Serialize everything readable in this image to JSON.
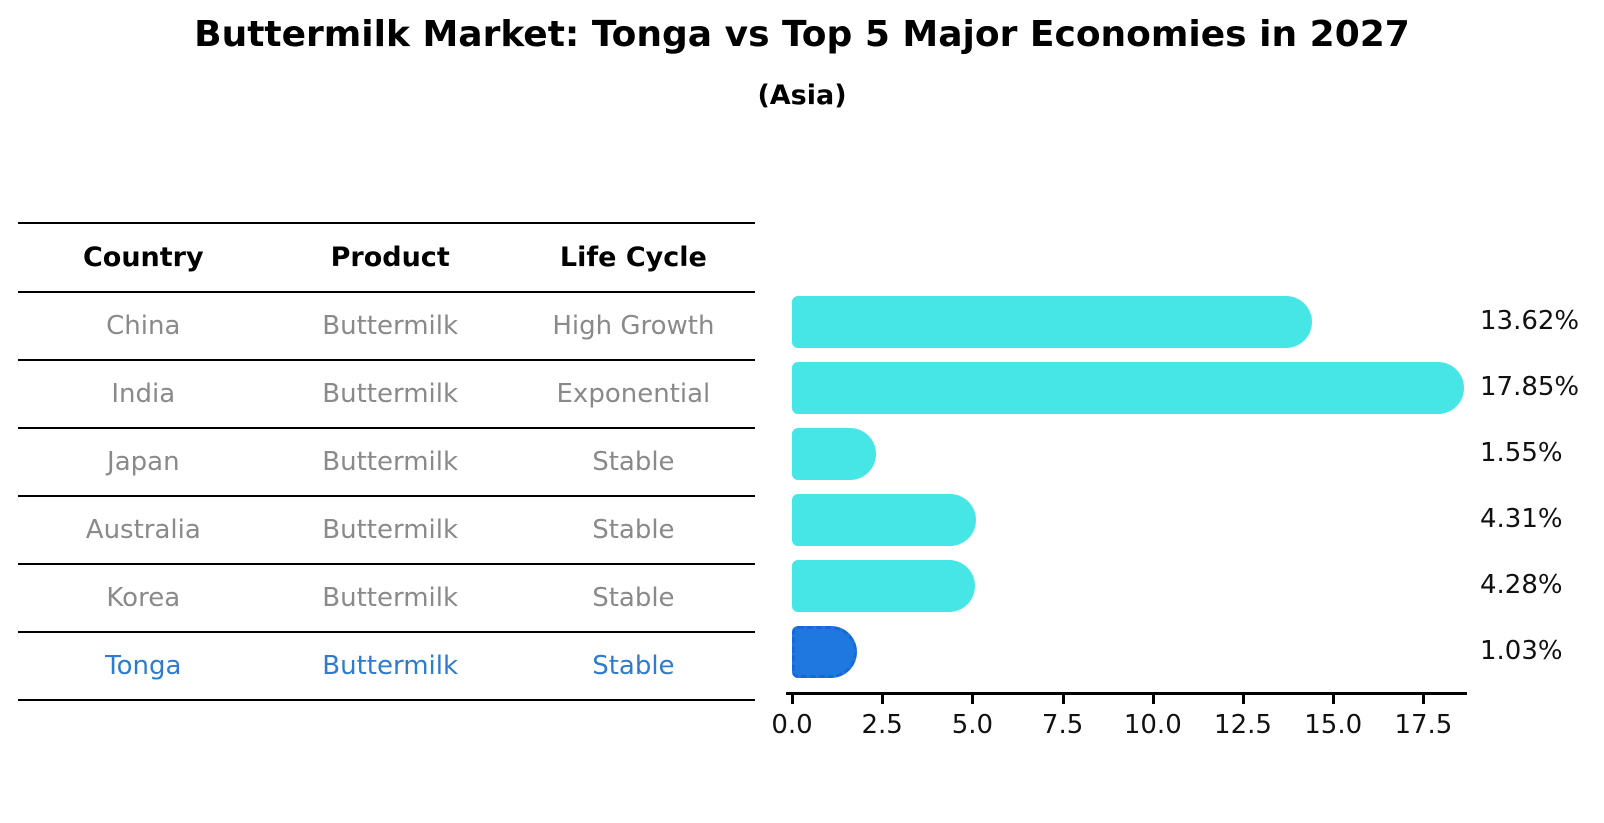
{
  "title": "Buttermilk Market: Tonga vs Top 5 Major Economies in 2027",
  "subtitle": "(Asia)",
  "table": {
    "headers": [
      "Country",
      "Product",
      "Life Cycle"
    ],
    "rows": [
      {
        "country": "China",
        "product": "Buttermilk",
        "life_cycle": "High Growth"
      },
      {
        "country": "India",
        "product": "Buttermilk",
        "life_cycle": "Exponential"
      },
      {
        "country": "Japan",
        "product": "Buttermilk",
        "life_cycle": "Stable"
      },
      {
        "country": "Australia",
        "product": "Buttermilk",
        "life_cycle": "Stable"
      },
      {
        "country": "Korea",
        "product": "Buttermilk",
        "life_cycle": "Stable"
      },
      {
        "country": "Tonga",
        "product": "Buttermilk",
        "life_cycle": "Stable"
      }
    ],
    "highlighted_country": "Tonga"
  },
  "chart_data": {
    "type": "bar",
    "orientation": "horizontal",
    "title": "Buttermilk Market: Tonga vs Top 5 Major Economies in 2027",
    "subtitle": "(Asia)",
    "categories": [
      "China",
      "India",
      "Japan",
      "Australia",
      "Korea",
      "Tonga"
    ],
    "values": [
      13.62,
      17.85,
      1.55,
      4.31,
      4.28,
      1.03
    ],
    "value_labels": [
      "13.62%",
      "17.85%",
      "1.55%",
      "4.31%",
      "4.28%",
      "1.03%"
    ],
    "x_ticks": [
      0.0,
      2.5,
      5.0,
      7.5,
      10.0,
      12.5,
      15.0,
      17.5
    ],
    "x_tick_labels": [
      "0.0",
      "2.5",
      "5.0",
      "7.5",
      "10.0",
      "12.5",
      "15.0",
      "17.5"
    ],
    "xlim": [
      0,
      18.7
    ],
    "grid": false,
    "legend": false,
    "bar_color": "#46E5E6",
    "highlight_bar_color": "#1F78E0",
    "highlight_index": 5
  },
  "colors": {
    "title_text": "#000000",
    "table_header_text": "#000000",
    "table_row_text": "#8a8a8a",
    "highlight_text": "#2E7CCF",
    "axis": "#000000",
    "value_label_text": "#111111"
  }
}
